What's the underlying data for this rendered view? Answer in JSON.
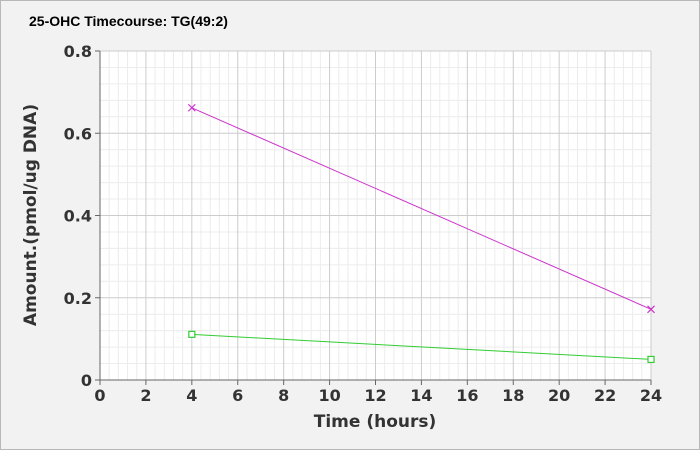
{
  "chart_data": {
    "type": "line",
    "title": "25-OHC Timecourse: TG(49:2)",
    "xlabel": "Time (hours)",
    "ylabel": "Amount.(pmol/ug DNA)",
    "xlim": [
      0,
      24
    ],
    "ylim": [
      0,
      0.8
    ],
    "x_ticks": [
      "0",
      "2",
      "4",
      "6",
      "8",
      "10",
      "12",
      "14",
      "16",
      "18",
      "20",
      "22",
      "24"
    ],
    "y_ticks": [
      "0",
      "0.2",
      "0.4",
      "0.6",
      "0.8"
    ],
    "grid": true,
    "series": [
      {
        "color": "#cc33cc",
        "marker": "x",
        "x": [
          4,
          24
        ],
        "y": [
          0.662,
          0.172
        ]
      },
      {
        "color": "#33cc33",
        "marker": "square",
        "x": [
          4,
          24
        ],
        "y": [
          0.111,
          0.05
        ]
      }
    ]
  }
}
